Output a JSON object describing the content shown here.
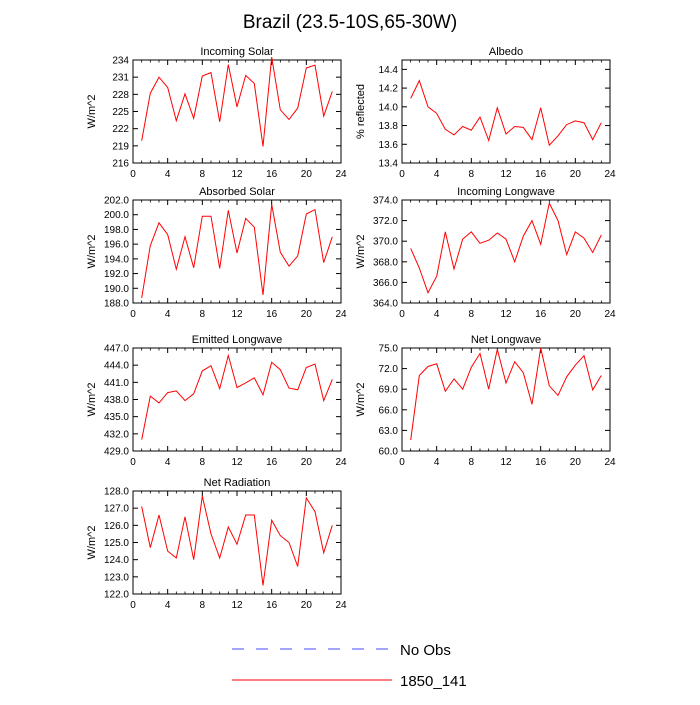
{
  "figure": {
    "title": "Brazil (23.5-10S,65-30W)",
    "line_color": "#ff0000",
    "obs_color": "#4a4aff"
  },
  "legend": {
    "entries": [
      {
        "label": "No Obs",
        "style": "dashed",
        "color": "#4a4aff"
      },
      {
        "label": "1850_141",
        "style": "solid",
        "color": "#ff0000"
      }
    ]
  },
  "chart_data": [
    {
      "type": "line",
      "title": "Incoming Solar",
      "ylabel": "W/m^2",
      "xlim": [
        0,
        24
      ],
      "xticks": [
        0,
        4,
        8,
        12,
        16,
        20,
        24
      ],
      "ylim": [
        216,
        234
      ],
      "yticks": [
        216,
        219,
        222,
        225,
        228,
        231,
        234
      ],
      "ytick_labels": [
        "216",
        "219",
        "222",
        "225",
        "228",
        "231",
        "234"
      ],
      "x": [
        1,
        2,
        3,
        4,
        5,
        6,
        7,
        8,
        9,
        10,
        11,
        12,
        13,
        14,
        15,
        16,
        17,
        18,
        19,
        20,
        21,
        22,
        23
      ],
      "series": [
        {
          "name": "1850_141",
          "values": [
            219.9,
            228.2,
            231.0,
            229.2,
            223.4,
            228.1,
            223.8,
            231.2,
            231.8,
            223.2,
            233.2,
            225.8,
            231.3,
            229.9,
            218.9,
            234.5,
            225.3,
            223.6,
            225.6,
            232.6,
            233.1,
            224.2,
            228.5
          ]
        }
      ]
    },
    {
      "type": "line",
      "title": "Albedo",
      "ylabel": "% reflected",
      "xlim": [
        0,
        24
      ],
      "xticks": [
        0,
        4,
        8,
        12,
        16,
        20,
        24
      ],
      "ylim": [
        13.4,
        14.5
      ],
      "yticks": [
        13.4,
        13.6,
        13.8,
        14.0,
        14.2,
        14.4
      ],
      "ytick_labels": [
        "13.4",
        "13.6",
        "13.8",
        "14.0",
        "14.2",
        "14.4"
      ],
      "x": [
        1,
        2,
        3,
        4,
        5,
        6,
        7,
        8,
        9,
        10,
        11,
        12,
        13,
        14,
        15,
        16,
        17,
        18,
        19,
        20,
        21,
        22,
        23
      ],
      "series": [
        {
          "name": "1850_141",
          "values": [
            14.09,
            14.28,
            14.0,
            13.93,
            13.76,
            13.7,
            13.79,
            13.75,
            13.89,
            13.64,
            13.99,
            13.71,
            13.79,
            13.78,
            13.65,
            13.99,
            13.59,
            13.69,
            13.81,
            13.85,
            13.83,
            13.65,
            13.83
          ]
        }
      ]
    },
    {
      "type": "line",
      "title": "Absorbed Solar",
      "ylabel": "W/m^2",
      "xlim": [
        0,
        24
      ],
      "xticks": [
        0,
        4,
        8,
        12,
        16,
        20,
        24
      ],
      "ylim": [
        188,
        202
      ],
      "yticks": [
        188,
        190,
        192,
        194,
        196,
        198,
        200,
        202
      ],
      "ytick_labels": [
        "188.0",
        "190.0",
        "192.0",
        "194.0",
        "196.0",
        "198.0",
        "200.0",
        "202.0"
      ],
      "x": [
        1,
        2,
        3,
        4,
        5,
        6,
        7,
        8,
        9,
        10,
        11,
        12,
        13,
        14,
        15,
        16,
        17,
        18,
        19,
        20,
        21,
        22,
        23
      ],
      "series": [
        {
          "name": "1850_141",
          "values": [
            188.7,
            195.8,
            198.9,
            197.3,
            192.6,
            197.0,
            192.8,
            199.8,
            199.8,
            192.7,
            200.6,
            194.8,
            199.5,
            198.3,
            189.1,
            201.4,
            194.9,
            193.0,
            194.4,
            200.1,
            200.7,
            193.5,
            197.0
          ]
        }
      ]
    },
    {
      "type": "line",
      "title": "Incoming Longwave",
      "ylabel": "W/m^2",
      "xlim": [
        0,
        24
      ],
      "xticks": [
        0,
        4,
        8,
        12,
        16,
        20,
        24
      ],
      "ylim": [
        364,
        374
      ],
      "yticks": [
        364,
        366,
        368,
        370,
        372,
        374
      ],
      "ytick_labels": [
        "364.0",
        "366.0",
        "368.0",
        "370.0",
        "372.0",
        "374.0"
      ],
      "x": [
        1,
        2,
        3,
        4,
        5,
        6,
        7,
        8,
        9,
        10,
        11,
        12,
        13,
        14,
        15,
        16,
        17,
        18,
        19,
        20,
        21,
        22,
        23
      ],
      "series": [
        {
          "name": "1850_141",
          "values": [
            369.3,
            367.4,
            365.0,
            366.6,
            370.9,
            367.3,
            370.2,
            370.9,
            369.8,
            370.1,
            370.8,
            370.2,
            368.0,
            370.5,
            372.0,
            369.7,
            373.7,
            372.0,
            368.7,
            370.9,
            370.3,
            368.9,
            370.6
          ]
        }
      ]
    },
    {
      "type": "line",
      "title": "Emitted Longwave",
      "ylabel": "W/m^2",
      "xlim": [
        0,
        24
      ],
      "xticks": [
        0,
        4,
        8,
        12,
        16,
        20,
        24
      ],
      "ylim": [
        429,
        447
      ],
      "yticks": [
        429,
        432,
        435,
        438,
        441,
        444,
        447
      ],
      "ytick_labels": [
        "429.0",
        "432.0",
        "435.0",
        "438.0",
        "441.0",
        "444.0",
        "447.0"
      ],
      "x": [
        1,
        2,
        3,
        4,
        5,
        6,
        7,
        8,
        9,
        10,
        11,
        12,
        13,
        14,
        15,
        16,
        17,
        18,
        19,
        20,
        21,
        22,
        23
      ],
      "series": [
        {
          "name": "1850_141",
          "values": [
            431.0,
            438.6,
            437.4,
            439.2,
            439.5,
            437.8,
            439.0,
            443.0,
            443.9,
            439.9,
            445.7,
            440.1,
            440.9,
            441.8,
            438.8,
            444.5,
            443.2,
            440.0,
            439.7,
            443.6,
            444.2,
            437.8,
            441.5
          ]
        }
      ]
    },
    {
      "type": "line",
      "title": "Net Longwave",
      "ylabel": "W/m^2",
      "xlim": [
        0,
        24
      ],
      "xticks": [
        0,
        4,
        8,
        12,
        16,
        20,
        24
      ],
      "ylim": [
        60,
        75
      ],
      "yticks": [
        60,
        63,
        66,
        69,
        72,
        75
      ],
      "ytick_labels": [
        "60.0",
        "63.0",
        "66.0",
        "69.0",
        "72.0",
        "75.0"
      ],
      "x": [
        1,
        2,
        3,
        4,
        5,
        6,
        7,
        8,
        9,
        10,
        11,
        12,
        13,
        14,
        15,
        16,
        17,
        18,
        19,
        20,
        21,
        22,
        23
      ],
      "series": [
        {
          "name": "1850_141",
          "values": [
            61.6,
            71.0,
            72.3,
            72.7,
            68.7,
            70.5,
            69.0,
            72.2,
            74.2,
            69.0,
            74.8,
            69.9,
            73.0,
            71.4,
            66.8,
            75.0,
            69.5,
            68.1,
            70.8,
            72.5,
            73.9,
            68.9,
            71.0
          ]
        }
      ]
    },
    {
      "type": "line",
      "title": "Net Radiation",
      "ylabel": "W/m^2",
      "xlim": [
        0,
        24
      ],
      "xticks": [
        0,
        4,
        8,
        12,
        16,
        20,
        24
      ],
      "ylim": [
        122,
        128
      ],
      "yticks": [
        122,
        123,
        124,
        125,
        126,
        127,
        128
      ],
      "ytick_labels": [
        "122.0",
        "123.0",
        "124.0",
        "125.0",
        "126.0",
        "127.0",
        "128.0"
      ],
      "x": [
        1,
        2,
        3,
        4,
        5,
        6,
        7,
        8,
        9,
        10,
        11,
        12,
        13,
        14,
        15,
        16,
        17,
        18,
        19,
        20,
        21,
        22,
        23
      ],
      "series": [
        {
          "name": "1850_141",
          "values": [
            127.1,
            124.7,
            126.6,
            124.5,
            124.1,
            126.5,
            124.0,
            127.7,
            125.5,
            124.1,
            125.9,
            124.9,
            126.6,
            126.6,
            122.5,
            126.3,
            125.4,
            125.0,
            123.6,
            127.6,
            126.8,
            124.4,
            126.0
          ]
        }
      ]
    }
  ]
}
